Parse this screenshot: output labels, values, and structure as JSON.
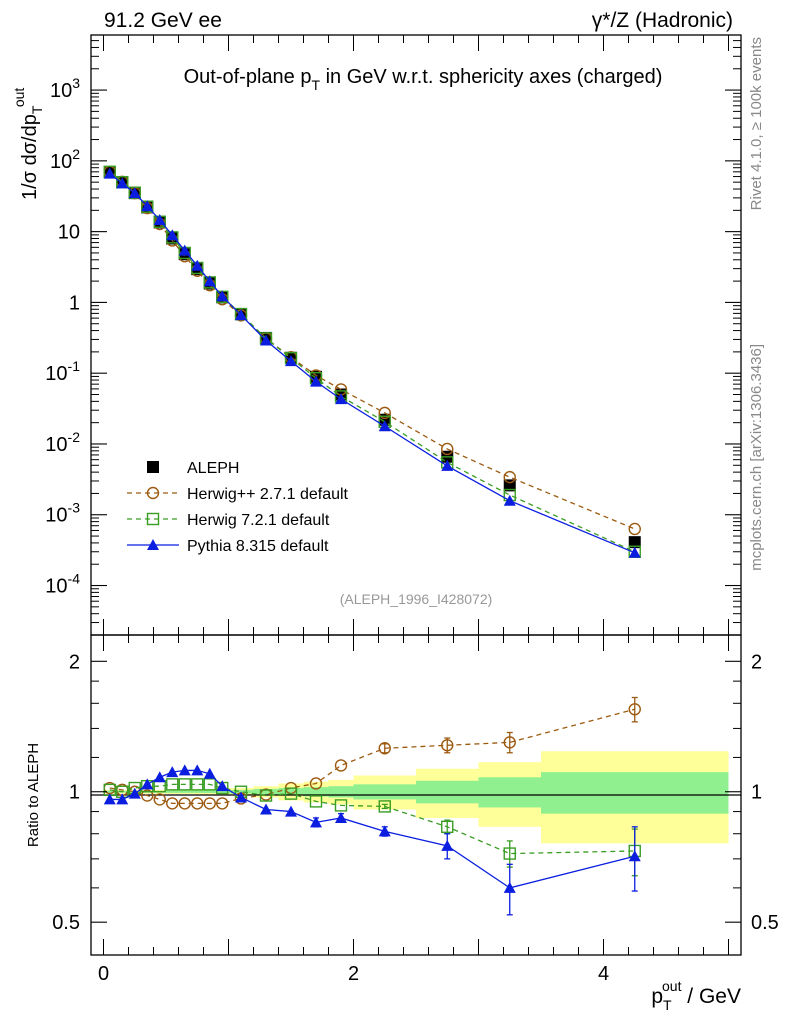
{
  "header": {
    "left_label": "91.2 GeV ee",
    "right_label": "γ*/Z (Hadronic)"
  },
  "side_labels": {
    "upper": "Rivet 4.1.0, ≥ 100k events",
    "lower": "mcplots.cern.ch [arXiv:1306.3436]"
  },
  "chart_data": [
    {
      "type": "line",
      "panel": "main",
      "title": "Out-of-plane pT in GeV w.r.t. sphericity axes (charged)",
      "title_parts": {
        "pre": "Out-of-plane p",
        "sub": "T",
        "post": " in GeV w.r.t. sphericity axes (charged)"
      },
      "ylabel": "1/σ dσ/dp_T^out",
      "ylabel_parts": {
        "pre": "1/σ  dσ/dp",
        "sub": "T",
        "sup": "out"
      },
      "yscale": "log",
      "xlim": [
        -0.1,
        5.1
      ],
      "ylim": [
        2e-05,
        6000
      ],
      "y_tick_labels": [
        "10^-4",
        "10^-3",
        "10^-2",
        "10^-1",
        "1",
        "10",
        "10^2",
        "10^3"
      ],
      "analysis_tag": "(ALEPH_1996_I428072)",
      "legend_position": "bottom-left",
      "x": [
        0.05,
        0.15,
        0.25,
        0.35,
        0.45,
        0.55,
        0.65,
        0.75,
        0.85,
        0.95,
        1.1,
        1.3,
        1.5,
        1.7,
        1.9,
        2.25,
        2.75,
        3.25,
        4.25
      ],
      "series": [
        {
          "name": "ALEPH",
          "marker": "square-filled",
          "color": "#000000",
          "values": [
            69,
            50,
            35,
            22,
            13.5,
            8,
            4.8,
            2.95,
            1.85,
            1.18,
            0.68,
            0.315,
            0.165,
            0.089,
            0.05,
            0.022,
            0.0066,
            0.0026,
            0.00041
          ]
        },
        {
          "name": "Herwig++ 2.7.1 default",
          "marker": "circle-open",
          "color": "#9c5a10",
          "dash": "5,4",
          "values": [
            70,
            50.5,
            35,
            21.5,
            12.8,
            7.5,
            4.5,
            2.8,
            1.75,
            1.11,
            0.655,
            0.31,
            0.168,
            0.093,
            0.059,
            0.0275,
            0.0085,
            0.0034,
            0.00063
          ]
        },
        {
          "name": "Herwig 7.2.1 default",
          "marker": "square-open",
          "color": "#3a9d23",
          "dash": "5,4",
          "values": [
            70,
            50,
            35.5,
            22.5,
            13.8,
            8.3,
            5,
            3.07,
            1.92,
            1.2,
            0.685,
            0.31,
            0.163,
            0.085,
            0.047,
            0.0206,
            0.0055,
            0.0019,
            0.0003
          ]
        },
        {
          "name": "Pythia 8.315 default",
          "marker": "triangle-filled",
          "color": "#0b1ee0",
          "dash": "",
          "values": [
            66,
            48,
            35,
            22.9,
            14.6,
            8.9,
            5.4,
            3.3,
            1.99,
            1.22,
            0.662,
            0.29,
            0.148,
            0.076,
            0.043,
            0.0178,
            0.0049,
            0.00158,
            0.00029
          ]
        }
      ]
    },
    {
      "type": "line",
      "panel": "ratio",
      "ylabel": "Ratio to ALEPH",
      "xlabel": "p_T^out / GeV",
      "xlabel_parts": {
        "pre": "p",
        "sub": "T",
        "sup": "out",
        "post": " / GeV"
      },
      "yscale": "log",
      "ylim": [
        0.42,
        2.3
      ],
      "y_ticks": [
        0.5,
        1,
        2
      ],
      "y_tick_labels": [
        "0.5",
        "1",
        "2"
      ],
      "x_ticks": [
        0,
        2,
        4
      ],
      "x_tick_labels": [
        "0",
        "2",
        "4"
      ],
      "band_colors": {
        "inner": "#90f090",
        "outer": "#ffff99"
      },
      "uncertainty_bands": [
        {
          "x0": 0.0,
          "x1": 0.1,
          "inner": 0.005,
          "outer": 0.01
        },
        {
          "x0": 0.1,
          "x1": 0.2,
          "inner": 0.005,
          "outer": 0.01
        },
        {
          "x0": 0.2,
          "x1": 0.3,
          "inner": 0.005,
          "outer": 0.01
        },
        {
          "x0": 0.3,
          "x1": 0.4,
          "inner": 0.005,
          "outer": 0.01
        },
        {
          "x0": 0.4,
          "x1": 0.5,
          "inner": 0.005,
          "outer": 0.01
        },
        {
          "x0": 0.5,
          "x1": 0.6,
          "inner": 0.006,
          "outer": 0.012
        },
        {
          "x0": 0.6,
          "x1": 0.7,
          "inner": 0.006,
          "outer": 0.012
        },
        {
          "x0": 0.7,
          "x1": 0.8,
          "inner": 0.006,
          "outer": 0.013
        },
        {
          "x0": 0.8,
          "x1": 0.9,
          "inner": 0.007,
          "outer": 0.014
        },
        {
          "x0": 0.9,
          "x1": 1.0,
          "inner": 0.008,
          "outer": 0.015
        },
        {
          "x0": 1.0,
          "x1": 1.2,
          "inner": 0.01,
          "outer": 0.02
        },
        {
          "x0": 1.2,
          "x1": 1.4,
          "inner": 0.015,
          "outer": 0.03
        },
        {
          "x0": 1.4,
          "x1": 1.6,
          "inner": 0.02,
          "outer": 0.045
        },
        {
          "x0": 1.6,
          "x1": 1.8,
          "inner": 0.025,
          "outer": 0.055
        },
        {
          "x0": 1.8,
          "x1": 2.0,
          "inner": 0.03,
          "outer": 0.065
        },
        {
          "x0": 2.0,
          "x1": 2.5,
          "inner": 0.04,
          "outer": 0.09
        },
        {
          "x0": 2.5,
          "x1": 3.0,
          "inner": 0.06,
          "outer": 0.13
        },
        {
          "x0": 3.0,
          "x1": 3.5,
          "inner": 0.08,
          "outer": 0.17
        },
        {
          "x0": 3.5,
          "x1": 5.0,
          "inner": 0.11,
          "outer": 0.24
        }
      ],
      "series": [
        {
          "name": "Herwig++ 2.7.1 default",
          "marker": "circle-open",
          "color": "#9c5a10",
          "dash": "5,4",
          "values": [
            1.02,
            1.01,
            1.0,
            0.98,
            0.96,
            0.94,
            0.94,
            0.94,
            0.94,
            0.94,
            0.965,
            0.985,
            1.02,
            1.045,
            1.15,
            1.26,
            1.28,
            1.3,
            1.55
          ],
          "errors": [
            0,
            0,
            0,
            0,
            0,
            0,
            0,
            0,
            0,
            0,
            0,
            0,
            0,
            0,
            0,
            0.03,
            0.05,
            0.07,
            0.1
          ]
        },
        {
          "name": "Herwig 7.2.1 default",
          "marker": "square-open",
          "color": "#3a9d23",
          "dash": "5,4",
          "values": [
            1.01,
            1.0,
            1.02,
            1.03,
            1.03,
            1.04,
            1.04,
            1.04,
            1.04,
            1.02,
            1.0,
            0.98,
            0.99,
            0.95,
            0.93,
            0.925,
            0.83,
            0.72,
            0.73
          ],
          "errors": [
            0,
            0,
            0,
            0,
            0,
            0,
            0,
            0,
            0,
            0,
            0,
            0,
            0,
            0,
            0,
            0.01,
            0.03,
            0.05,
            0.09
          ]
        },
        {
          "name": "Pythia 8.315 default",
          "marker": "triangle-filled",
          "color": "#0b1ee0",
          "dash": "",
          "values": [
            0.96,
            0.96,
            0.99,
            1.04,
            1.08,
            1.11,
            1.12,
            1.12,
            1.1,
            1.03,
            0.97,
            0.91,
            0.9,
            0.85,
            0.87,
            0.81,
            0.75,
            0.6,
            0.71
          ],
          "errors": [
            0,
            0,
            0,
            0,
            0,
            0,
            0,
            0,
            0,
            0,
            0,
            0,
            0,
            0.02,
            0.02,
            0.02,
            0.05,
            0.08,
            0.12
          ]
        }
      ]
    }
  ]
}
